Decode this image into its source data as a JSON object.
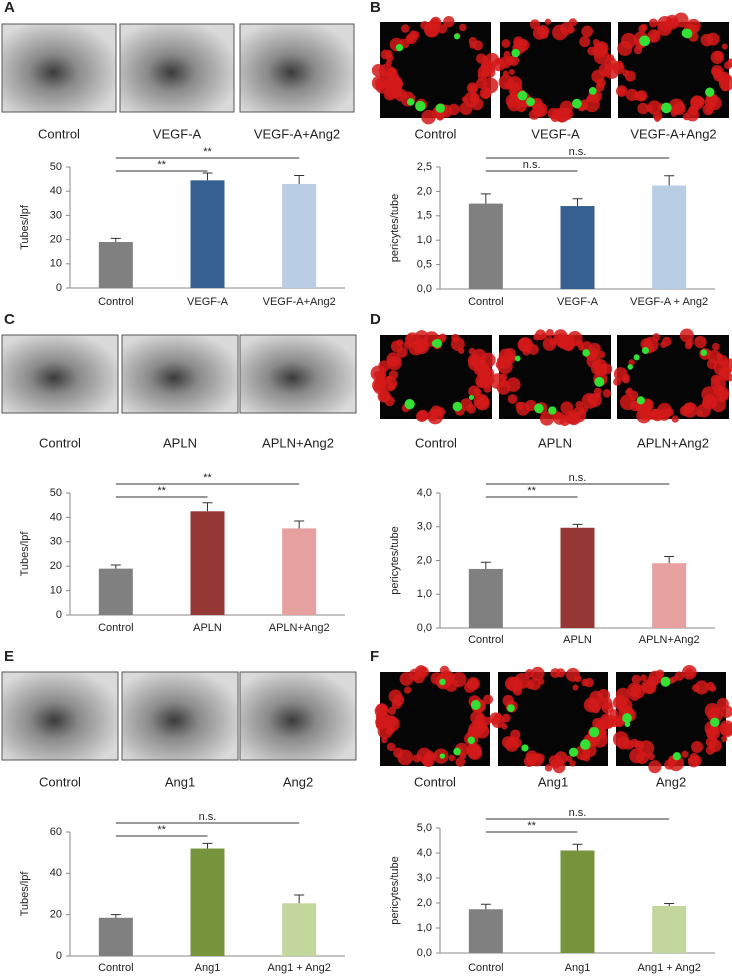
{
  "chart_data": [
    {
      "type": "bar",
      "panel": "A",
      "image_labels": [
        "Control",
        "VEGF-A",
        "VEGF-A+Ang2"
      ],
      "image_kind": "brightfield",
      "y_label": "Tubes/lpf",
      "categories": [
        "Control",
        "VEGF-A",
        "VEGF-A+Ang2"
      ],
      "values": [
        19,
        44.5,
        43
      ],
      "errors": [
        1.5,
        3,
        3.5
      ],
      "colors": [
        "#808080",
        "#376092",
        "#b9cde5"
      ],
      "ylim": [
        0,
        50
      ],
      "yticks": [
        0,
        10,
        20,
        30,
        40,
        50
      ],
      "annotations": [
        "**",
        "**"
      ]
    },
    {
      "type": "bar",
      "panel": "B",
      "image_labels": [
        "Control",
        "VEGF-A",
        "VEGF-A+Ang2"
      ],
      "image_kind": "fluorescence",
      "y_label": "pericytes/tube",
      "categories": [
        "Control",
        "VEGF-A",
        "VEGF-A + Ang2"
      ],
      "values": [
        1.75,
        1.7,
        2.12
      ],
      "errors": [
        0.2,
        0.15,
        0.2
      ],
      "colors": [
        "#808080",
        "#376092",
        "#b9cde5"
      ],
      "ylim": [
        0,
        2.5
      ],
      "yticks": [
        {
          "value": 0,
          "label": "0,0"
        },
        {
          "value": 0.5,
          "label": "0,5"
        },
        {
          "value": 1,
          "label": "1,0"
        },
        {
          "value": 1.5,
          "label": "1,5"
        },
        {
          "value": 2,
          "label": "2,0"
        },
        {
          "value": 2.5,
          "label": "2,5"
        }
      ],
      "annotations": [
        "n.s.",
        "n.s."
      ]
    },
    {
      "type": "bar",
      "panel": "C",
      "image_labels": [
        "Control",
        "APLN",
        "APLN+Ang2"
      ],
      "image_kind": "brightfield",
      "y_label": "Tubes/lpf",
      "categories": [
        "Control",
        "APLN",
        "APLN+Ang2"
      ],
      "values": [
        19,
        42.5,
        35.5
      ],
      "errors": [
        1.5,
        3.5,
        3
      ],
      "colors": [
        "#808080",
        "#953735",
        "#e6a0a0"
      ],
      "ylim": [
        0,
        50
      ],
      "yticks": [
        0,
        10,
        20,
        30,
        40,
        50
      ],
      "annotations": [
        "**",
        "**"
      ]
    },
    {
      "type": "bar",
      "panel": "D",
      "image_labels": [
        "Control",
        "APLN",
        "APLN+Ang2"
      ],
      "image_kind": "fluorescence",
      "y_label": "pericytes/tube",
      "categories": [
        "Control",
        "APLN",
        "APLN+Ang2"
      ],
      "values": [
        1.75,
        2.97,
        1.92
      ],
      "errors": [
        0.2,
        0.1,
        0.2
      ],
      "colors": [
        "#808080",
        "#953735",
        "#e6a0a0"
      ],
      "ylim": [
        0,
        4
      ],
      "yticks": [
        {
          "value": 0,
          "label": "0,0"
        },
        {
          "value": 1,
          "label": "1,0"
        },
        {
          "value": 2,
          "label": "2,0"
        },
        {
          "value": 3,
          "label": "3,0"
        },
        {
          "value": 4,
          "label": "4,0"
        }
      ],
      "annotations": [
        "**",
        "n.s."
      ]
    },
    {
      "type": "bar",
      "panel": "E",
      "image_labels": [
        "Control",
        "Ang1",
        "Ang2"
      ],
      "image_kind": "brightfield",
      "y_label": "Tubes/lpf",
      "categories": [
        "Control",
        "Ang1",
        "Ang1 + Ang2"
      ],
      "values": [
        18.5,
        52,
        25.5
      ],
      "errors": [
        1.5,
        2.5,
        4
      ],
      "colors": [
        "#808080",
        "#77933c",
        "#c3d69b"
      ],
      "ylim": [
        0,
        60
      ],
      "yticks": [
        0,
        20,
        40,
        60
      ],
      "annotations": [
        "**",
        "n.s."
      ]
    },
    {
      "type": "bar",
      "panel": "F",
      "image_labels": [
        "Control",
        "Ang1",
        "Ang2"
      ],
      "image_kind": "fluorescence",
      "y_label": "pericytes/tube",
      "categories": [
        "Control",
        "Ang1",
        "Ang1 + Ang2"
      ],
      "values": [
        1.75,
        4.1,
        1.88
      ],
      "errors": [
        0.2,
        0.25,
        0.1
      ],
      "colors": [
        "#808080",
        "#77933c",
        "#c3d69b"
      ],
      "ylim": [
        0,
        5
      ],
      "yticks": [
        {
          "value": 0,
          "label": "0,0"
        },
        {
          "value": 1,
          "label": "1,0"
        },
        {
          "value": 2,
          "label": "2,0"
        },
        {
          "value": 3,
          "label": "3,0"
        },
        {
          "value": 4,
          "label": "4,0"
        },
        {
          "value": 5,
          "label": "5,0"
        }
      ],
      "annotations": [
        "**",
        "n.s."
      ]
    }
  ]
}
